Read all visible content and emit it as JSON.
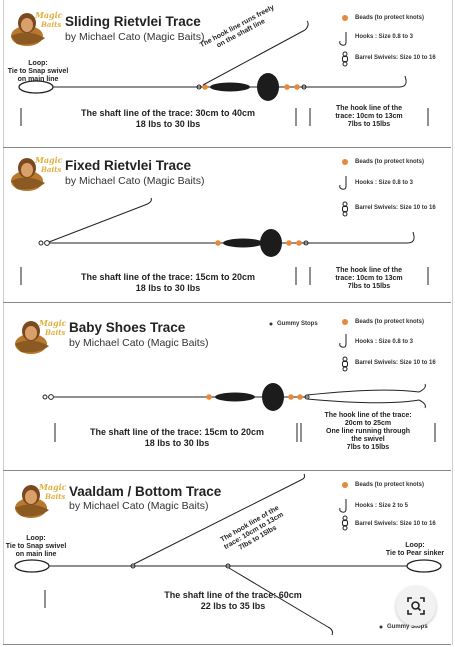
{
  "panels": [
    {
      "title": "Sliding Rietvlei Trace",
      "author": "by Michael Cato (Magic Baits)",
      "legend": [
        "Beads (to protect knots)",
        "Hooks : Size 0.8 to 3",
        "Barrel Swivels: Size 10 to 16"
      ],
      "loop_label": [
        "Loop:",
        "Tie to Snap swivel",
        "on main line"
      ],
      "annotation": [
        "The hook line runs freely",
        "on the shaft line"
      ],
      "shaft": [
        "The shaft line of the trace: 30cm to 40cm",
        "18 lbs to 30 lbs"
      ],
      "hook": [
        "The hook line of the",
        "trace: 10cm to 13cm",
        "7lbs to 15lbs"
      ]
    },
    {
      "title": "Fixed Rietvlei Trace",
      "author": "by Michael Cato (Magic Baits)",
      "legend": [
        "Beads (to protect knots)",
        "Hooks : Size 0.8 to 3",
        "Barrel Swivels: Size 10 to 16"
      ],
      "shaft": [
        "The shaft line of the trace: 15cm to 20cm",
        "18 lbs to 30 lbs"
      ],
      "hook": [
        "The hook line of the",
        "trace: 10cm to 13cm",
        "7lbs to 15lbs"
      ]
    },
    {
      "title": "Baby Shoes Trace",
      "author": "by Michael Cato (Magic Baits)",
      "gummy": "Gummy Stops",
      "legend": [
        "Beads (to protect knots)",
        "Hooks : Size 0.8 to 3",
        "Barrel Swivels: Size 10 to 16"
      ],
      "shaft": [
        "The shaft line of the trace: 15cm to 20cm",
        "18 lbs to 30 lbs"
      ],
      "hook": [
        "The hook line of the trace:",
        "20cm to 25cm",
        "One line running through",
        "the swivel",
        "7lbs to 15lbs"
      ]
    },
    {
      "title": "Vaaldam / Bottom Trace",
      "author": "by Michael Cato (Magic Baits)",
      "legend": [
        "Beads (to protect knots)",
        "Hooks : Size 2 to 5",
        "Barrel Swivels: Size 10 to 16"
      ],
      "loop_label": [
        "Loop:",
        "Tie to Snap swivel",
        "on main line"
      ],
      "right_loop_label": [
        "Loop:",
        "Tie to Pear sinker"
      ],
      "annotation": [
        "The hook line of the",
        "trace: 10cm to 13cm",
        "7lbs to 15lbs"
      ],
      "shaft": [
        "The shaft line of the trace: 60cm",
        "22 lbs to 35 lbs"
      ],
      "gummy": "Gummy Stops"
    }
  ],
  "colors": {
    "bead": "#e8883a",
    "sinker": "#1c1c1c",
    "line": "#222222",
    "panel_border": "#888888"
  },
  "icons": {
    "zoom": "visual-search-icon",
    "logo": "magic-baits-logo"
  }
}
